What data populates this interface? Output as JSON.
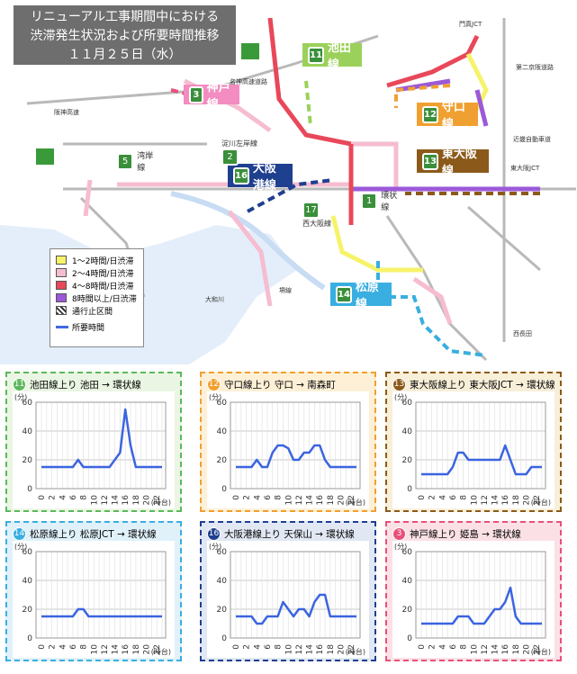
{
  "header": {
    "line1": "リニューアル工事期間中における",
    "line2": "渋滞発生状況および所要時間推移",
    "line3": "１１月２５日（水）"
  },
  "legend": {
    "items": [
      {
        "label": "1～2時間/日渋滞",
        "color": "#f6f36b"
      },
      {
        "label": "2～4時間/日渋滞",
        "color": "#f6bcd0"
      },
      {
        "label": "4～8時間/日渋滞",
        "color": "#e8485a"
      },
      {
        "label": "8時間以上/日渋滞",
        "color": "#9b59d9"
      },
      {
        "label": "通行止区間",
        "color": "#333333"
      }
    ],
    "time_label": "所要時間"
  },
  "route_labels": {
    "ikeda": {
      "num": "11",
      "name": "池田線"
    },
    "moriguchi": {
      "num": "12",
      "name": "守口線"
    },
    "higashiosaka": {
      "num": "13",
      "name": "東大阪線"
    },
    "matsubara": {
      "num": "14",
      "name": "松原線"
    },
    "osakako": {
      "num": "16",
      "name": "大阪港線"
    },
    "kobe": {
      "num": "3",
      "name": "神戸線"
    },
    "wangan": {
      "num": "5",
      "name": "湾岸線"
    },
    "kanjo": {
      "num": "1",
      "name": "環状線"
    },
    "nishiosaka": {
      "num": "17",
      "name": "西大阪線"
    },
    "yodogawa": {
      "num": "2",
      "name": "淀川左岸線"
    }
  },
  "map_text": {
    "t1": "名神高速道路",
    "t2": "近畿自動車道",
    "t3": "第二京阪道路",
    "t4": "阪神高速",
    "t5": "大和川",
    "t6": "東大阪JCT",
    "t7": "堺線",
    "t8": "門真JCT",
    "t9": "西長田"
  },
  "chart_data": [
    {
      "type": "line",
      "route_num": "11",
      "title": "池田線上り 池田 → 環状線",
      "accent": "#5cb85c",
      "bg": "#eaf6e3",
      "ylabel": "(分)",
      "xlabel": "(時台)",
      "ylim": [
        0,
        60
      ],
      "yticks": [
        "0",
        "20",
        "40",
        "60"
      ],
      "xticks": [
        "0",
        "2",
        "4",
        "6",
        "8",
        "10",
        "12",
        "14",
        "16",
        "18",
        "20",
        "22"
      ],
      "series": [
        {
          "x": [
            0,
            1,
            2,
            3,
            4,
            5,
            6,
            7,
            8,
            9,
            10,
            11,
            12,
            13,
            14,
            15,
            16,
            17,
            18,
            19,
            20,
            21,
            22,
            23
          ],
          "values": [
            15,
            15,
            15,
            15,
            15,
            15,
            15,
            20,
            15,
            15,
            15,
            15,
            15,
            15,
            20,
            25,
            55,
            30,
            15,
            15,
            15,
            15,
            15,
            15
          ]
        }
      ]
    },
    {
      "type": "line",
      "route_num": "12",
      "title": "守口線上り 守口 → 南森町",
      "accent": "#f0a030",
      "bg": "#fdf0d6",
      "ylabel": "(分)",
      "xlabel": "(時台)",
      "ylim": [
        0,
        60
      ],
      "yticks": [
        "0",
        "20",
        "40",
        "60"
      ],
      "xticks": [
        "0",
        "2",
        "4",
        "6",
        "8",
        "10",
        "12",
        "14",
        "16",
        "18",
        "20",
        "22"
      ],
      "series": [
        {
          "x": [
            0,
            1,
            2,
            3,
            4,
            5,
            6,
            7,
            8,
            9,
            10,
            11,
            12,
            13,
            14,
            15,
            16,
            17,
            18,
            19,
            20,
            21,
            22,
            23
          ],
          "values": [
            15,
            15,
            15,
            15,
            20,
            15,
            15,
            25,
            30,
            30,
            28,
            20,
            20,
            25,
            25,
            30,
            30,
            20,
            15,
            15,
            15,
            15,
            15,
            15
          ]
        }
      ]
    },
    {
      "type": "line",
      "route_num": "13",
      "title": "東大阪線上り 東大阪JCT → 環状線",
      "accent": "#8b5a1a",
      "bg": "#f8efd9",
      "ylabel": "(分)",
      "xlabel": "(時台)",
      "ylim": [
        0,
        60
      ],
      "yticks": [
        "0",
        "20",
        "40",
        "60"
      ],
      "xticks": [
        "0",
        "2",
        "4",
        "6",
        "8",
        "10",
        "12",
        "14",
        "16",
        "18",
        "20",
        "22"
      ],
      "series": [
        {
          "x": [
            0,
            1,
            2,
            3,
            4,
            5,
            6,
            7,
            8,
            9,
            10,
            11,
            12,
            13,
            14,
            15,
            16,
            17,
            18,
            19,
            20,
            21,
            22,
            23
          ],
          "values": [
            10,
            10,
            10,
            10,
            10,
            10,
            15,
            25,
            25,
            20,
            20,
            20,
            20,
            20,
            20,
            20,
            30,
            20,
            10,
            10,
            10,
            15,
            15,
            15
          ]
        }
      ]
    },
    {
      "type": "line",
      "route_num": "14",
      "title": "松原線上り 松原JCT → 環状線",
      "accent": "#39aee0",
      "bg": "#e0f1fa",
      "ylabel": "(分)",
      "xlabel": "(時台)",
      "ylim": [
        0,
        60
      ],
      "yticks": [
        "0",
        "20",
        "40",
        "60"
      ],
      "xticks": [
        "0",
        "2",
        "4",
        "6",
        "8",
        "10",
        "12",
        "14",
        "16",
        "18",
        "20",
        "22"
      ],
      "series": [
        {
          "x": [
            0,
            1,
            2,
            3,
            4,
            5,
            6,
            7,
            8,
            9,
            10,
            11,
            12,
            13,
            14,
            15,
            16,
            17,
            18,
            19,
            20,
            21,
            22,
            23
          ],
          "values": [
            15,
            15,
            15,
            15,
            15,
            15,
            15,
            20,
            20,
            15,
            15,
            15,
            15,
            15,
            15,
            15,
            15,
            15,
            15,
            15,
            15,
            15,
            15,
            15
          ]
        }
      ]
    },
    {
      "type": "line",
      "route_num": "16",
      "title": "大阪港線上り 天保山 → 環状線",
      "accent": "#1f3f8f",
      "bg": "#e1e8f3",
      "ylabel": "(分)",
      "xlabel": "(時台)",
      "ylim": [
        0,
        60
      ],
      "yticks": [
        "0",
        "20",
        "40",
        "60"
      ],
      "xticks": [
        "0",
        "2",
        "4",
        "6",
        "8",
        "10",
        "12",
        "14",
        "16",
        "18",
        "20",
        "22"
      ],
      "series": [
        {
          "x": [
            0,
            1,
            2,
            3,
            4,
            5,
            6,
            7,
            8,
            9,
            10,
            11,
            12,
            13,
            14,
            15,
            16,
            17,
            18,
            19,
            20,
            21,
            22,
            23
          ],
          "values": [
            15,
            15,
            15,
            15,
            10,
            10,
            15,
            15,
            15,
            25,
            20,
            15,
            20,
            20,
            15,
            25,
            30,
            30,
            15,
            15,
            15,
            15,
            15,
            15
          ]
        }
      ]
    },
    {
      "type": "line",
      "route_num": "3",
      "title": "神戸線上り 姫島 → 環状線",
      "accent": "#e8507a",
      "bg": "#fbe1e6",
      "ylabel": "(分)",
      "xlabel": "(時台)",
      "ylim": [
        0,
        60
      ],
      "yticks": [
        "0",
        "20",
        "40",
        "60"
      ],
      "xticks": [
        "0",
        "2",
        "4",
        "6",
        "8",
        "10",
        "12",
        "14",
        "16",
        "18",
        "20",
        "22"
      ],
      "series": [
        {
          "x": [
            0,
            1,
            2,
            3,
            4,
            5,
            6,
            7,
            8,
            9,
            10,
            11,
            12,
            13,
            14,
            15,
            16,
            17,
            18,
            19,
            20,
            21,
            22,
            23
          ],
          "values": [
            10,
            10,
            10,
            10,
            10,
            10,
            10,
            15,
            15,
            15,
            10,
            10,
            10,
            15,
            20,
            20,
            25,
            35,
            15,
            10,
            10,
            10,
            10,
            10
          ]
        }
      ]
    }
  ]
}
